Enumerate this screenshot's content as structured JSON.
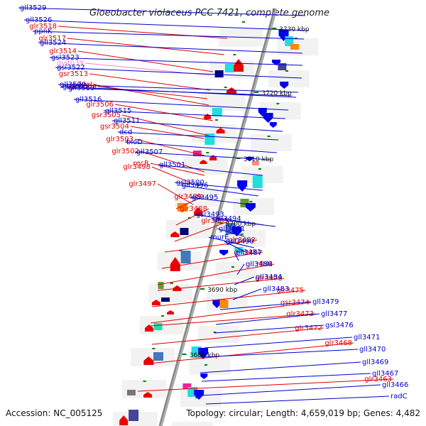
{
  "title": "Gloeobacter violaceus PCC 7421, complete genome",
  "accession": "Accession: NC_005125",
  "topology": "Topology: circular; Length: 4,659,019 bp; Genes: 4,482",
  "colors": {
    "left_label": "#dd0000",
    "right_label": "#0000cc",
    "special_label": "#ee88cc",
    "axis": "#888888",
    "tick": "#008000"
  },
  "kbp_marks": [
    "3730 kbp",
    "3720 kbp",
    "3710 kbp",
    "3700 kbp",
    "3690 kbp",
    "3680 kbp"
  ],
  "left_labels": [
    {
      "text": "glr3518"
    },
    {
      "text": "glr3517"
    },
    {
      "text": "glr3514"
    },
    {
      "text": "gvit039",
      "special": true
    },
    {
      "text": "gsr3513"
    },
    {
      "text": "dnaJ"
    },
    {
      "text": "glr3508"
    },
    {
      "text": "glr3506"
    },
    {
      "text": "gsr3505"
    },
    {
      "text": "gsr3504"
    },
    {
      "text": "glr3503"
    },
    {
      "text": "glr3502"
    },
    {
      "text": "recR"
    },
    {
      "text": "glr3498"
    },
    {
      "text": "glr3497"
    },
    {
      "text": "glr3489"
    },
    {
      "text": "glr3488"
    },
    {
      "text": "glr3485"
    },
    {
      "text": "glr3482"
    },
    {
      "text": "glr3481"
    },
    {
      "text": "rfbM"
    },
    {
      "text": "glr3478"
    },
    {
      "text": "glr3475"
    },
    {
      "text": "gsr3474"
    },
    {
      "text": "glr3473"
    },
    {
      "text": "glr3472"
    },
    {
      "text": "glr3468"
    },
    {
      "text": "glr3463"
    }
  ],
  "right_labels": [
    {
      "text": "gll3529"
    },
    {
      "text": "gll3526"
    },
    {
      "text": "ppnK"
    },
    {
      "text": "gll3524"
    },
    {
      "text": "gsl3523"
    },
    {
      "text": "gsl3522"
    },
    {
      "text": "gll3520"
    },
    {
      "text": "gll3521"
    },
    {
      "text": "gll3519"
    },
    {
      "text": "gll3516"
    },
    {
      "text": "gll3515"
    },
    {
      "text": "gll3511"
    },
    {
      "text": "dcd"
    },
    {
      "text": "bioD"
    },
    {
      "text": "gll3507"
    },
    {
      "text": "gll3501"
    },
    {
      "text": "gsl3500"
    },
    {
      "text": "gll3496"
    },
    {
      "text": "gll3495"
    },
    {
      "text": "gsl3493"
    },
    {
      "text": "gsl3494"
    },
    {
      "text": "murE"
    },
    {
      "text": "gll3491"
    },
    {
      "text": "gsl3490"
    },
    {
      "text": "gll3487"
    },
    {
      "text": "gll3486"
    },
    {
      "text": "gll3484"
    },
    {
      "text": "gll3483"
    },
    {
      "text": "gll3479"
    },
    {
      "text": "gll3477"
    },
    {
      "text": "gsl3476"
    },
    {
      "text": "gll3471"
    },
    {
      "text": "gll3470"
    },
    {
      "text": "gll3469"
    },
    {
      "text": "gll3467"
    },
    {
      "text": "gll3466"
    },
    {
      "text": "radC"
    }
  ]
}
